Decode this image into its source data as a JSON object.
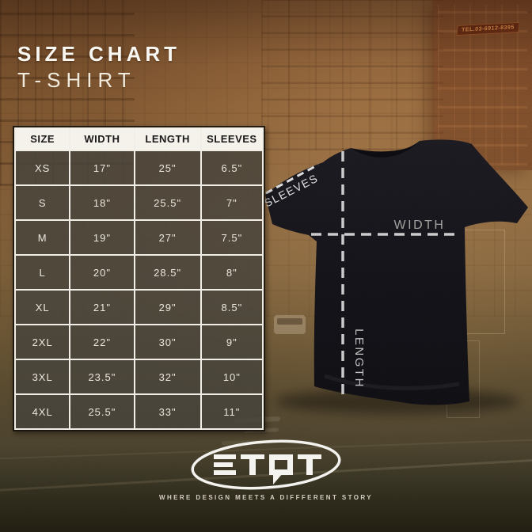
{
  "page": {
    "title_line1": "SIZE CHART",
    "title_line2": "T-SHIRT"
  },
  "size_table": {
    "headers": [
      "SIZE",
      "WIDTH",
      "LENGTH",
      "SLEEVES"
    ],
    "rows": [
      [
        "XS",
        "17\"",
        "25\"",
        "6.5\""
      ],
      [
        "S",
        "18\"",
        "25.5\"",
        "7\""
      ],
      [
        "M",
        "19\"",
        "27\"",
        "7.5\""
      ],
      [
        "L",
        "20\"",
        "28.5\"",
        "8\""
      ],
      [
        "XL",
        "21\"",
        "29\"",
        "8.5\""
      ],
      [
        "2XL",
        "22\"",
        "30\"",
        "9\""
      ],
      [
        "3XL",
        "23.5\"",
        "32\"",
        "10\""
      ],
      [
        "4XL",
        "25.5\"",
        "33\"",
        "11\""
      ]
    ]
  },
  "diagram": {
    "labels": {
      "sleeves": "SLEEVES",
      "width": "WIDTH",
      "length": "LENGTH"
    }
  },
  "footer": {
    "logo_text": "ETQT",
    "tagline": "WHERE DESIGN MEETS A DIFFFERENT STORY"
  },
  "background": {
    "sign_text": "TEL.03-6912-8395"
  },
  "colors": {
    "background_sepia": "#8f6940",
    "table_header_bg": "#f6f3ec",
    "table_cell_bg": "#514a3e",
    "grid_line": "#f2efe8",
    "shirt_black": "#17161b",
    "dash_gray": "#cccccc",
    "title_white": "#faf8f3"
  },
  "chart_data": {
    "type": "table",
    "title": "SIZE CHART — T-SHIRT",
    "columns": [
      "SIZE",
      "WIDTH",
      "LENGTH",
      "SLEEVES"
    ],
    "units": "inches",
    "rows": [
      [
        "XS",
        17,
        25,
        6.5
      ],
      [
        "S",
        18,
        25.5,
        7
      ],
      [
        "M",
        19,
        27,
        7.5
      ],
      [
        "L",
        20,
        28.5,
        8
      ],
      [
        "XL",
        21,
        29,
        8.5
      ],
      [
        "2XL",
        22,
        30,
        9
      ],
      [
        "3XL",
        23.5,
        32,
        10
      ],
      [
        "4XL",
        25.5,
        33,
        11
      ]
    ]
  }
}
